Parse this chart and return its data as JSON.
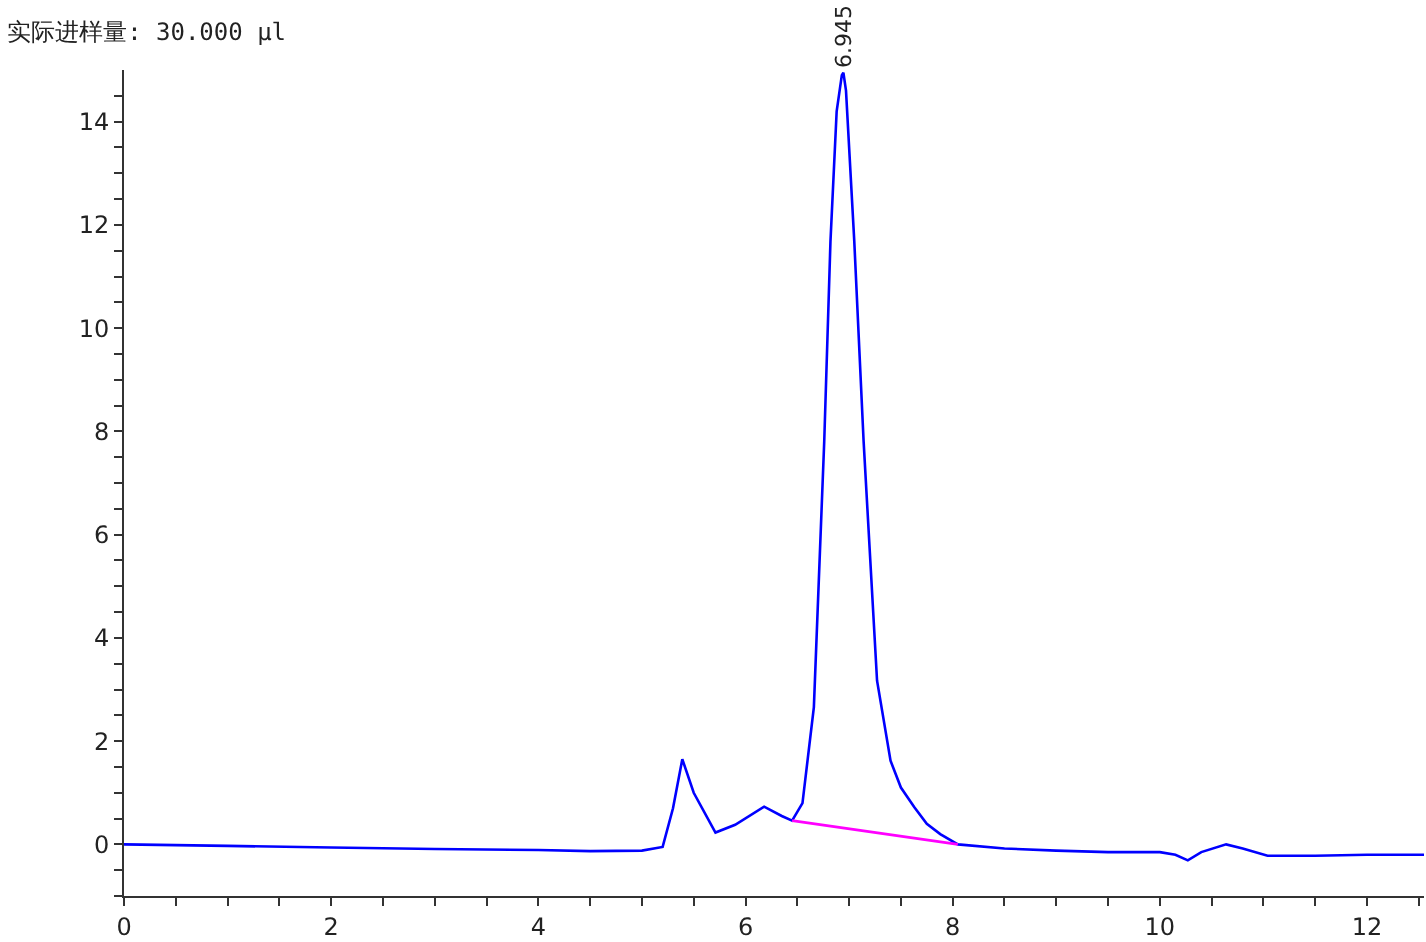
{
  "chart_data": {
    "type": "line",
    "title": "实际进样量: 30.000 µl",
    "xlim": [
      0,
      12.55
    ],
    "xticks": [
      0,
      {
        "value": 0.5,
        "label": null
      },
      {
        "value": 1,
        "label": null
      },
      {
        "value": 1.5,
        "label": null
      },
      2,
      {
        "value": 2.5,
        "label": null
      },
      {
        "value": 3,
        "label": null
      },
      {
        "value": 3.5,
        "label": null
      },
      4,
      {
        "value": 4.5,
        "label": null
      },
      {
        "value": 5,
        "label": null
      },
      {
        "value": 5.5,
        "label": null
      },
      6,
      {
        "value": 6.5,
        "label": null
      },
      {
        "value": 7,
        "label": null
      },
      {
        "value": 7.5,
        "label": null
      },
      8,
      {
        "value": 8.5,
        "label": null
      },
      {
        "value": 9,
        "label": null
      },
      {
        "value": 9.5,
        "label": null
      },
      10,
      {
        "value": 10.5,
        "label": null
      },
      {
        "value": 11,
        "label": null
      },
      {
        "value": 11.5,
        "label": null
      },
      12,
      {
        "value": 12.5,
        "label": null
      }
    ],
    "ylim": [
      -1,
      15
    ],
    "yticks": [
      {
        "value": -1,
        "label": null
      },
      {
        "value": -0.5,
        "label": null
      },
      0,
      {
        "value": 0.5,
        "label": null
      },
      {
        "value": 1,
        "label": null
      },
      {
        "value": 1.5,
        "label": null
      },
      2,
      {
        "value": 2.5,
        "label": null
      },
      {
        "value": 3,
        "label": null
      },
      {
        "value": 3.5,
        "label": null
      },
      4,
      {
        "value": 4.5,
        "label": null
      },
      {
        "value": 5,
        "label": null
      },
      {
        "value": 5.5,
        "label": null
      },
      6,
      {
        "value": 6.5,
        "label": null
      },
      {
        "value": 7,
        "label": null
      },
      {
        "value": 7.5,
        "label": null
      },
      8,
      {
        "value": 8.5,
        "label": null
      },
      {
        "value": 9,
        "label": null
      },
      {
        "value": 9.5,
        "label": null
      },
      10,
      {
        "value": 10.5,
        "label": null
      },
      {
        "value": 11,
        "label": null
      },
      {
        "value": 11.5,
        "label": null
      },
      12,
      {
        "value": 12.5,
        "label": null
      },
      {
        "value": 13,
        "label": null
      },
      {
        "value": 13.5,
        "label": null
      },
      14,
      {
        "value": 14.5,
        "label": null
      }
    ],
    "grid": false,
    "marker": "none",
    "line_style": "solid",
    "series": [
      {
        "color": "#0000ff",
        "x": [
          0,
          1,
          2,
          3,
          4,
          4.5,
          5,
          5.2,
          5.3,
          5.39,
          5.5,
          5.71,
          5.9,
          6.18,
          6.35,
          6.45,
          6.55,
          6.66,
          6.76,
          6.82,
          6.88,
          6.93,
          6.945,
          6.97,
          7.05,
          7.14,
          7.27,
          7.4,
          7.5,
          7.63,
          7.75,
          7.88,
          8.05,
          8.5,
          9,
          9.5,
          10,
          10.15,
          10.27,
          10.4,
          10.64,
          10.8,
          11.04,
          11.5,
          12,
          12.55
        ],
        "values": [
          0,
          -0.03,
          -0.06,
          -0.09,
          -0.11,
          -0.13,
          -0.12,
          -0.05,
          0.7,
          1.65,
          1.0,
          0.23,
          0.38,
          0.73,
          0.55,
          0.46,
          0.8,
          2.66,
          7.81,
          11.68,
          14.2,
          14.9,
          14.95,
          14.6,
          11.68,
          7.81,
          3.17,
          1.62,
          1.1,
          0.72,
          0.4,
          0.2,
          0.0,
          -0.08,
          -0.12,
          -0.15,
          -0.15,
          -0.2,
          -0.31,
          -0.15,
          0.0,
          -0.08,
          -0.22,
          -0.22,
          -0.2,
          -0.2
        ]
      },
      {
        "color": "#ff00ff",
        "x": [
          6.45,
          8.05
        ],
        "values": [
          0.46,
          0.0
        ]
      }
    ],
    "annotations": [
      {
        "text": "6.945",
        "x": 6.945,
        "y": 14.95
      }
    ]
  }
}
